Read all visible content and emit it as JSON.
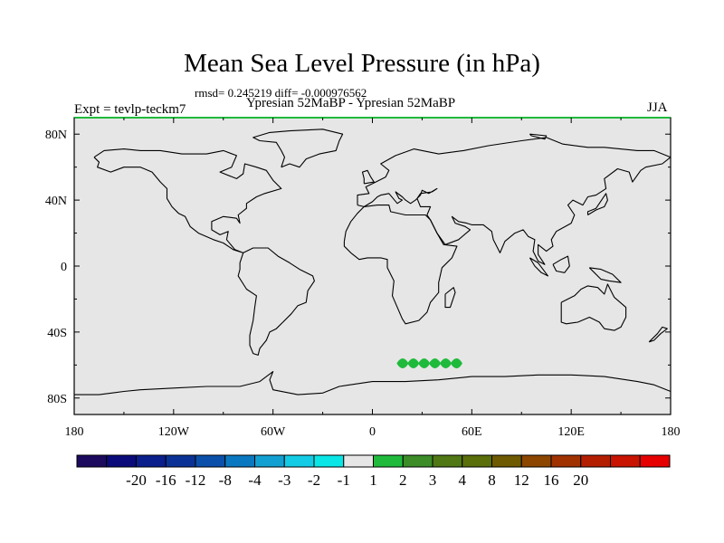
{
  "title": "Mean Sea Level Pressure (in hPa)",
  "stats_line": "rmsd= 0.245219 diff= -0.000976562",
  "subtitle": "Ypresian  52MaBP - Ypresian  52MaBP",
  "experiment_label": "Expt = tevlp-teckm7",
  "season_label": "JJA",
  "chart_data": {
    "type": "heatmap",
    "title": "Mean Sea Level Pressure (in hPa)",
    "projection": "cylindrical equidistant",
    "xlim": [
      -180,
      180
    ],
    "ylim": [
      -90,
      90
    ],
    "x_ticks": [
      {
        "value": -180,
        "label": "180"
      },
      {
        "value": -120,
        "label": "120W"
      },
      {
        "value": -60,
        "label": "60W"
      },
      {
        "value": 0,
        "label": "0"
      },
      {
        "value": 60,
        "label": "60E"
      },
      {
        "value": 120,
        "label": "120E"
      },
      {
        "value": 180,
        "label": "180"
      }
    ],
    "y_ticks": [
      {
        "value": 80,
        "label": "80N"
      },
      {
        "value": 40,
        "label": "40N"
      },
      {
        "value": 0,
        "label": "0"
      },
      {
        "value": -40,
        "label": "40S"
      },
      {
        "value": -80,
        "label": "80S"
      }
    ],
    "background_range": "-1 to 1",
    "background_color": "#e6e6e6",
    "anomaly_regions": [
      {
        "description": "Southern Ocean south of Africa",
        "lon_range": [
          15,
          54
        ],
        "lat_range": [
          -63,
          -55
        ],
        "value_range": "1 to 2",
        "color": "#1fba3c"
      }
    ],
    "colorbar": {
      "colors": [
        "#1c0a5e",
        "#0a0a7a",
        "#0a1e8c",
        "#0a3296",
        "#0a50aa",
        "#0a78c0",
        "#12a0d2",
        "#14cbe6",
        "#0ae6e6",
        "#e6e6e6",
        "#1fba3c",
        "#3c8c28",
        "#507814",
        "#5a6e0a",
        "#6e5a00",
        "#8c4600",
        "#a03200",
        "#b41e00",
        "#c81400",
        "#e60000"
      ],
      "labels": [
        "-20",
        "-16",
        "-12",
        "-8",
        "-4",
        "-3",
        "-2",
        "-1",
        "1",
        "2",
        "3",
        "4",
        "8",
        "12",
        "16",
        "20"
      ]
    }
  }
}
